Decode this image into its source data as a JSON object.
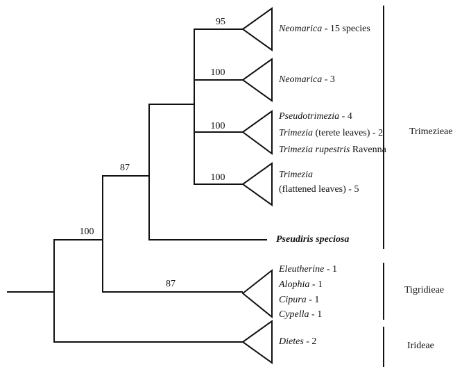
{
  "support": [
    100,
    87,
    87,
    95,
    100,
    100,
    100
  ],
  "taxa": [
    {
      "italic": "Neomarica",
      "text": " - 15 species"
    },
    {
      "italic": "Neomarica",
      "text": " - 3"
    },
    {
      "italic": "Pseudotrimezia",
      "text": " - 4"
    },
    {
      "italic": "Trimezia",
      "text": " (terete leaves) - 2"
    },
    {
      "italic": "Trimezia rupestris",
      "text": " Ravenna"
    },
    {
      "italic": "Trimezia",
      "text": "(flattened leaves) - 5"
    },
    {
      "italic": "Pseudiris speciosa"
    },
    {
      "italic": "Eleutherine",
      "text": " - 1"
    },
    {
      "italic": "Alophia",
      "text": " - 1"
    },
    {
      "italic": "Cipura",
      "text": " - 1"
    },
    {
      "italic": "Cypella",
      "text": " - 1"
    },
    {
      "italic": "Dietes",
      "text": " - 2"
    }
  ],
  "tribes": [
    "Trimezieae",
    "Tigridieae",
    "Irideae"
  ]
}
